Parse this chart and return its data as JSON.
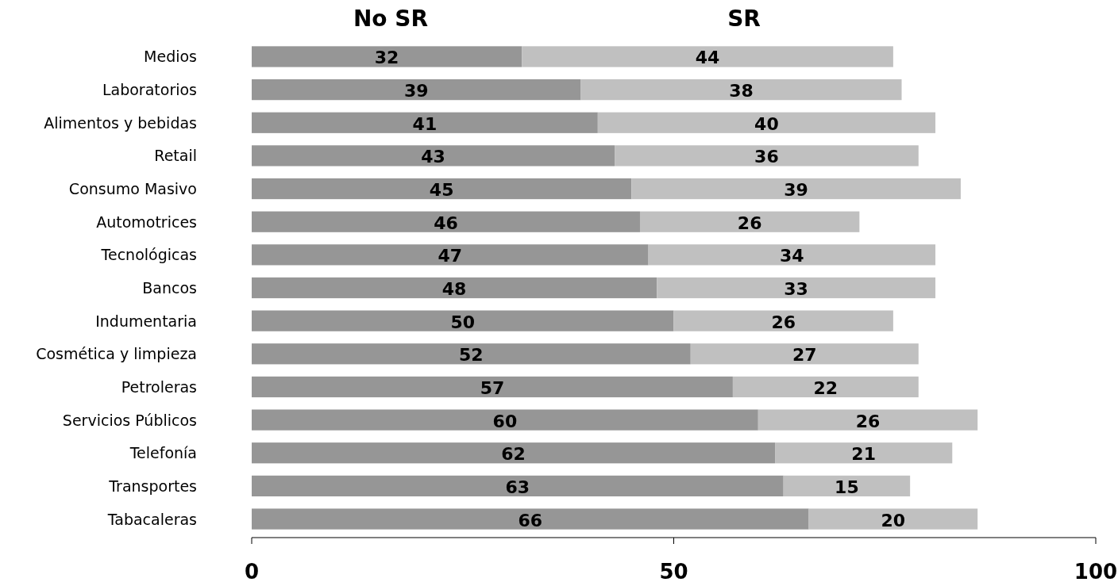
{
  "chart_data": {
    "type": "bar",
    "orientation": "horizontal",
    "stacked": true,
    "data_labels": true,
    "legend": "top",
    "grid": false,
    "categories": [
      "Medios",
      "Laboratorios",
      "Alimentos y bebidas",
      "Retail",
      "Consumo Masivo",
      "Automotrices",
      "Tecnológicas",
      "Bancos",
      "Indumentaria",
      "Cosmética y limpieza",
      "Petroleras",
      "Servicios Públicos",
      "Telefonía",
      "Transportes",
      "Tabacaleras"
    ],
    "series": [
      {
        "name": "No SR",
        "color": "#969696",
        "values": [
          32,
          39,
          41,
          43,
          45,
          46,
          47,
          48,
          50,
          52,
          57,
          60,
          62,
          63,
          66
        ]
      },
      {
        "name": "SR",
        "color": "#c0c0c0",
        "values": [
          44,
          38,
          40,
          36,
          39,
          26,
          34,
          33,
          26,
          27,
          22,
          26,
          21,
          15,
          20
        ]
      }
    ],
    "xlim": [
      0,
      100
    ],
    "xticks": [
      0,
      50,
      100
    ]
  }
}
